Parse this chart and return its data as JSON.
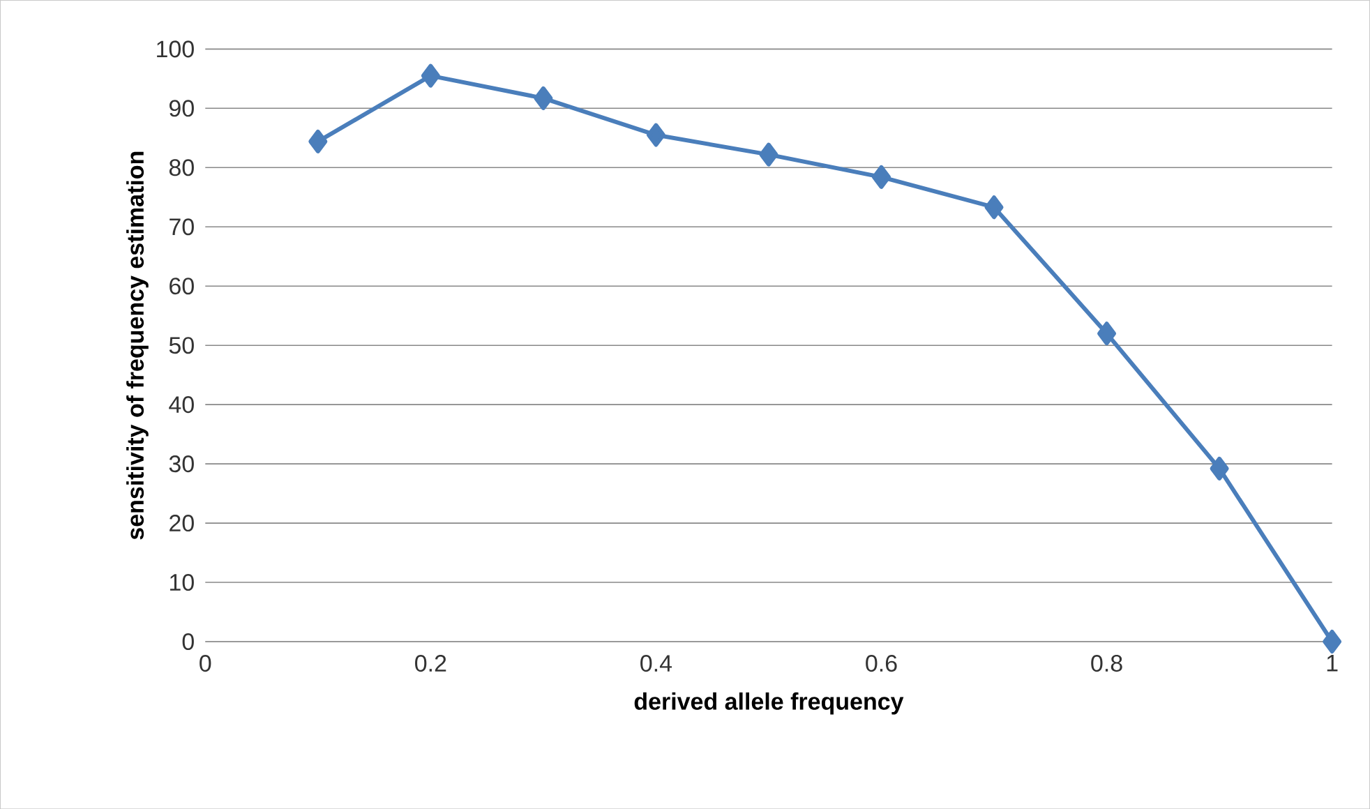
{
  "chart_data": {
    "type": "line",
    "xlabel": "derived allele frequency",
    "ylabel": "sensitivity of frequency estimation",
    "x": [
      0.1,
      0.2,
      0.3,
      0.4,
      0.5,
      0.6,
      0.7,
      0.8,
      0.9,
      1
    ],
    "series": [
      {
        "color": "#4a7ebb",
        "values": [
          84.4,
          95.5,
          91.7,
          85.5,
          82.2,
          78.4,
          73.3,
          52.0,
          29.2,
          0
        ]
      }
    ],
    "xlim": [
      0,
      1
    ],
    "xticks": [
      0,
      0.2,
      0.4,
      0.6,
      0.8,
      1
    ],
    "ylim": [
      0,
      100
    ],
    "yticks": [
      0,
      10,
      20,
      30,
      40,
      50,
      60,
      70,
      80,
      90,
      100
    ],
    "grid": "y",
    "marker": "diamond",
    "line_style": "solid"
  }
}
